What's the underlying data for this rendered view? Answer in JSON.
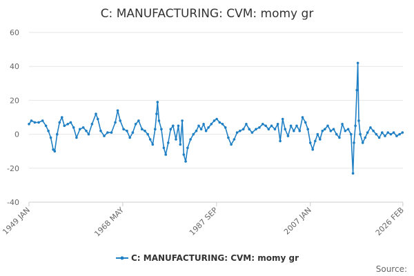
{
  "chart_data": {
    "type": "line",
    "title": "C: MANUFACTURING: CVM: momy gr",
    "xlabel": "",
    "ylabel": "",
    "ylim": [
      -40,
      60
    ],
    "yticks": [
      "60",
      "40",
      "20",
      "0",
      "-20",
      "-40"
    ],
    "yticks_values": [
      60,
      40,
      20,
      0,
      -20,
      -40
    ],
    "xlim": [
      1949.0,
      2026.1
    ],
    "xticks": [
      {
        "label": "1949 JAN",
        "value": 1949.0
      },
      {
        "label": "1968 MAY",
        "value": 1968.33
      },
      {
        "label": "1987 SEP",
        "value": 1987.67
      },
      {
        "label": "2007 JAN",
        "value": 2007.0
      },
      {
        "label": "2026 FEB",
        "value": 2026.08
      }
    ],
    "grid": true,
    "legend_position": "bottom",
    "series": [
      {
        "name": "C: MANUFACTURING: CVM: momy gr",
        "color": "#1f7fc4",
        "points": [
          [
            1949.0,
            6
          ],
          [
            1949.5,
            8
          ],
          [
            1950.2,
            7
          ],
          [
            1951.0,
            7
          ],
          [
            1951.8,
            8
          ],
          [
            1952.5,
            5
          ],
          [
            1953.0,
            2
          ],
          [
            1953.5,
            -2
          ],
          [
            1954.0,
            -9
          ],
          [
            1954.3,
            -10
          ],
          [
            1954.8,
            0
          ],
          [
            1955.3,
            7
          ],
          [
            1955.8,
            10
          ],
          [
            1956.3,
            5
          ],
          [
            1957.0,
            6
          ],
          [
            1957.6,
            7
          ],
          [
            1958.2,
            4
          ],
          [
            1958.8,
            -2
          ],
          [
            1959.5,
            3
          ],
          [
            1960.2,
            4
          ],
          [
            1960.8,
            2
          ],
          [
            1961.3,
            0
          ],
          [
            1962.0,
            6
          ],
          [
            1962.8,
            12
          ],
          [
            1963.2,
            9
          ],
          [
            1963.8,
            2
          ],
          [
            1964.5,
            -1
          ],
          [
            1965.2,
            1
          ],
          [
            1966.0,
            1
          ],
          [
            1966.8,
            7
          ],
          [
            1967.3,
            14
          ],
          [
            1967.8,
            8
          ],
          [
            1968.5,
            3
          ],
          [
            1969.2,
            2
          ],
          [
            1969.8,
            -2
          ],
          [
            1970.4,
            1
          ],
          [
            1971.0,
            6
          ],
          [
            1971.6,
            8
          ],
          [
            1972.3,
            3
          ],
          [
            1972.9,
            2
          ],
          [
            1973.5,
            0
          ],
          [
            1974.0,
            -3
          ],
          [
            1974.5,
            -6
          ],
          [
            1975.0,
            3
          ],
          [
            1975.3,
            12
          ],
          [
            1975.5,
            19
          ],
          [
            1975.8,
            8
          ],
          [
            1976.3,
            3
          ],
          [
            1976.8,
            -8
          ],
          [
            1977.2,
            -12
          ],
          [
            1977.7,
            -5
          ],
          [
            1978.2,
            3
          ],
          [
            1978.7,
            5
          ],
          [
            1979.3,
            -3
          ],
          [
            1979.8,
            5
          ],
          [
            1980.2,
            -6
          ],
          [
            1980.6,
            8
          ],
          [
            1980.9,
            -12
          ],
          [
            1981.3,
            -16
          ],
          [
            1981.7,
            -8
          ],
          [
            1982.3,
            -3
          ],
          [
            1982.9,
            0
          ],
          [
            1983.5,
            2
          ],
          [
            1984.0,
            5
          ],
          [
            1984.5,
            3
          ],
          [
            1985.0,
            6
          ],
          [
            1985.5,
            2
          ],
          [
            1986.0,
            4
          ],
          [
            1986.6,
            6
          ],
          [
            1987.2,
            8
          ],
          [
            1987.7,
            9
          ],
          [
            1988.3,
            7
          ],
          [
            1988.9,
            6
          ],
          [
            1989.5,
            4
          ],
          [
            1990.1,
            -2
          ],
          [
            1990.7,
            -6
          ],
          [
            1991.3,
            -3
          ],
          [
            1991.9,
            1
          ],
          [
            1992.5,
            2
          ],
          [
            1993.2,
            3
          ],
          [
            1993.8,
            6
          ],
          [
            1994.4,
            3
          ],
          [
            1995.0,
            1
          ],
          [
            1995.8,
            3
          ],
          [
            1996.5,
            4
          ],
          [
            1997.2,
            6
          ],
          [
            1997.8,
            5
          ],
          [
            1998.4,
            3
          ],
          [
            1999.0,
            5
          ],
          [
            1999.7,
            3
          ],
          [
            2000.3,
            6
          ],
          [
            2000.8,
            -4
          ],
          [
            2001.3,
            9
          ],
          [
            2001.8,
            3
          ],
          [
            2002.4,
            -1
          ],
          [
            2003.0,
            5
          ],
          [
            2003.6,
            2
          ],
          [
            2004.2,
            5
          ],
          [
            2004.8,
            2
          ],
          [
            2005.4,
            10
          ],
          [
            2006.0,
            7
          ],
          [
            2006.5,
            3
          ],
          [
            2007.0,
            -5
          ],
          [
            2007.5,
            -9
          ],
          [
            2008.0,
            -4
          ],
          [
            2008.5,
            0
          ],
          [
            2009.0,
            -3
          ],
          [
            2009.5,
            2
          ],
          [
            2010.0,
            3
          ],
          [
            2010.6,
            5
          ],
          [
            2011.2,
            2
          ],
          [
            2011.8,
            3
          ],
          [
            2012.4,
            0
          ],
          [
            2013.0,
            -2
          ],
          [
            2013.6,
            6
          ],
          [
            2014.2,
            2
          ],
          [
            2014.8,
            3
          ],
          [
            2015.4,
            0
          ],
          [
            2015.8,
            -23
          ],
          [
            2016.0,
            -5
          ],
          [
            2016.3,
            5
          ],
          [
            2016.6,
            26
          ],
          [
            2016.8,
            42
          ],
          [
            2017.0,
            8
          ],
          [
            2017.3,
            0
          ],
          [
            2017.8,
            -5
          ],
          [
            2018.3,
            -2
          ],
          [
            2018.8,
            1
          ],
          [
            2019.4,
            4
          ],
          [
            2020.0,
            2
          ],
          [
            2020.6,
            0
          ],
          [
            2021.2,
            -2
          ],
          [
            2021.8,
            1
          ],
          [
            2022.4,
            -1
          ],
          [
            2023.0,
            1
          ],
          [
            2023.6,
            0
          ],
          [
            2024.2,
            1
          ],
          [
            2024.8,
            -1
          ],
          [
            2025.4,
            0
          ],
          [
            2026.0,
            1
          ]
        ]
      }
    ]
  },
  "legend": {
    "label": "C: MANUFACTURING: CVM: momy gr"
  },
  "footer": {
    "source_label": "Source:"
  }
}
